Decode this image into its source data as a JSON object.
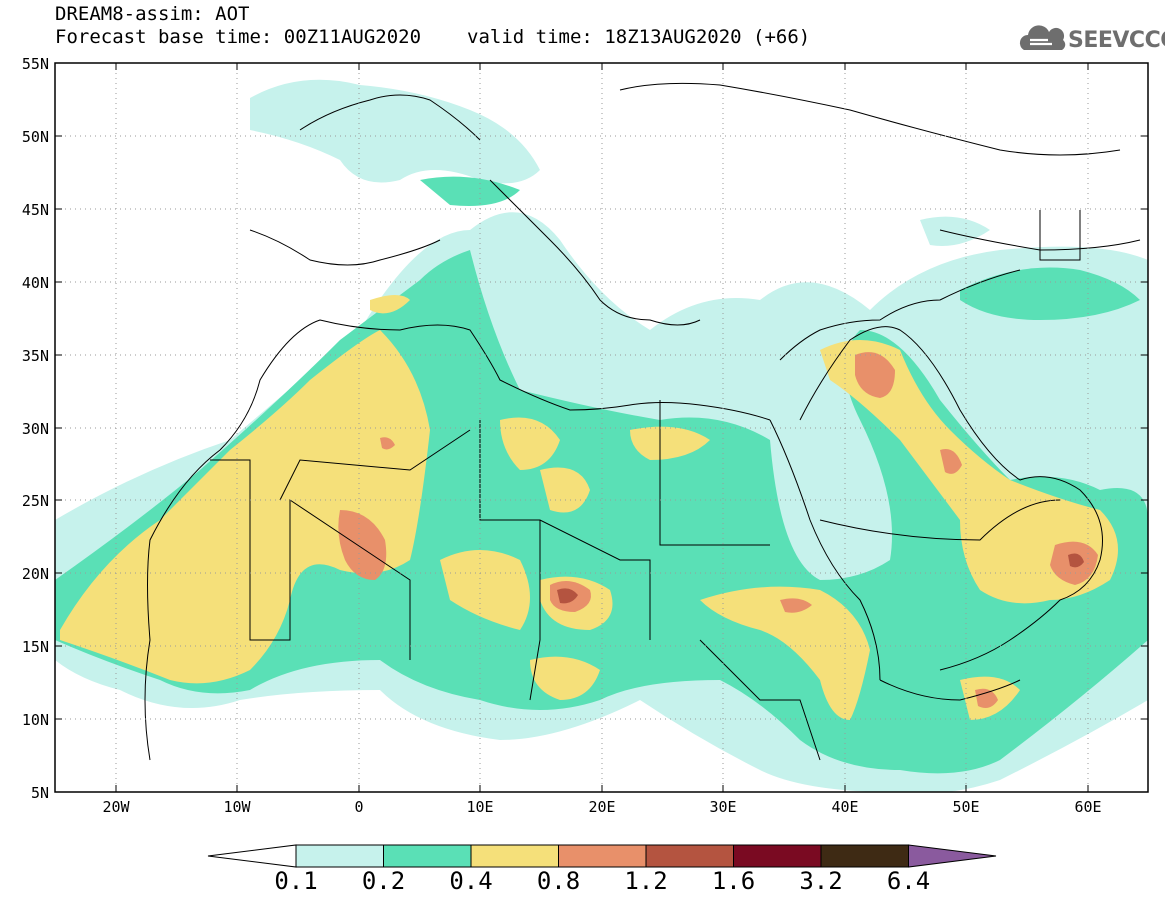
{
  "header": {
    "title": "DREAM8-assim: AOT",
    "forecast_base": "Forecast base time: 00Z11AUG2020",
    "valid_time": "valid time: 18Z13AUG2020 (+66)",
    "logo_text": "SEEVCCC",
    "logo_icon": "cloud-icon"
  },
  "axes": {
    "lat_labels": [
      "55N",
      "50N",
      "45N",
      "40N",
      "35N",
      "30N",
      "25N",
      "20N",
      "15N",
      "10N",
      "5N"
    ],
    "lon_labels": [
      "20W",
      "10W",
      "0",
      "10E",
      "20E",
      "30E",
      "40E",
      "50E",
      "60E"
    ],
    "lat_range": [
      5,
      55
    ],
    "lon_range": [
      -25,
      65
    ]
  },
  "colorbar": {
    "levels": [
      "0.1",
      "0.2",
      "0.4",
      "0.8",
      "1.2",
      "1.6",
      "3.2",
      "6.4"
    ],
    "colors": [
      "#c6f2ec",
      "#5ae0b6",
      "#f5e07a",
      "#e8906a",
      "#b45440",
      "#7a0a22",
      "#3e2a14",
      "#8a5a9e"
    ],
    "extend_low_color": "#ffffff",
    "extend_high_color": "#8a5a9e"
  }
}
